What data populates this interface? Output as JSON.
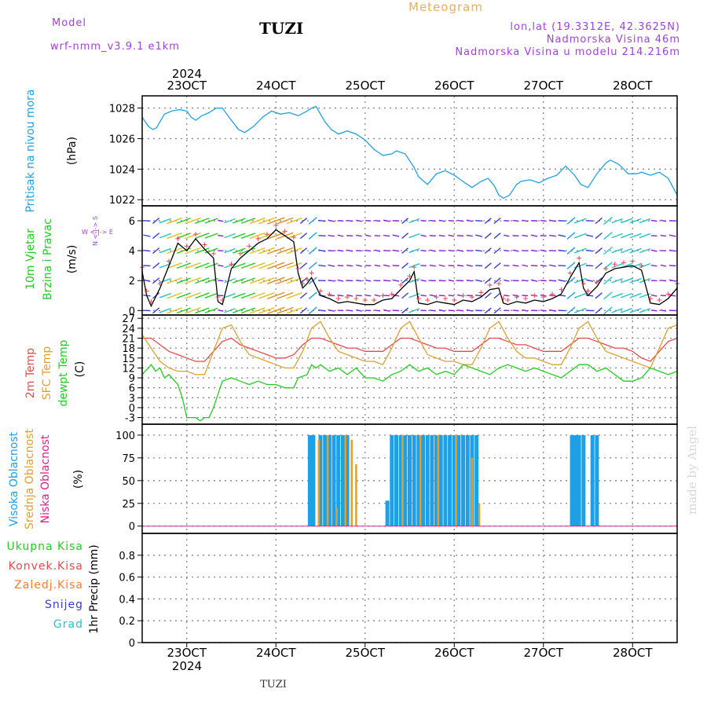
{
  "header": {
    "model_label": "Model",
    "model_name": "wrf-nmm_v3.9.1  e1km",
    "station": "TUZI",
    "product": "Meteogram",
    "coords": "lon,lat (19.3312E, 42.3625N)",
    "elevation": "Nadmorska Visina 46m",
    "model_elevation": "Nadmorska Visina u modelu 214.216m",
    "year_top": "2024",
    "year_bottom": "2024",
    "footer_station": "TUZI",
    "credit": "made by Angel"
  },
  "colors": {
    "pressure": "#1ea0e6",
    "temp2m": "#e84a4a",
    "sfc": "#e0a030",
    "dew": "#22cc22",
    "high_cloud": "#1ea0e6",
    "mid_cloud": "#e0a030",
    "low_cloud": "#e0208a",
    "total_precip": "#22cc22",
    "conv_precip": "#e84a4a",
    "frozen_precip": "#ff7a2a",
    "snow": "#3b3bdc",
    "hail": "#22c4c4",
    "header_purple": "#a040e0",
    "header_gold": "#e8b060"
  },
  "panel_labels": {
    "pressure": "Pritisak na nivou mora",
    "pressure_unit": "(hPa)",
    "wind1": "10m Vjetar",
    "wind2": "Brzina i Pravac",
    "wind_unit": "(m/s)",
    "compass": "W  <-|-> E",
    "compass_ns": "N <-|-> S",
    "temp1": "2m Temp",
    "temp2": "SFC Temp",
    "temp3": "dewpt Temp",
    "temp_unit": "(C)",
    "cloud1": "Visoka Oblacnost",
    "cloud2": "Srednja Oblacnost",
    "cloud3": "Niska Oblacnost",
    "cloud_unit": "(%)",
    "precip_unit": "1hr Precip (mm)"
  },
  "precip_legend": [
    "Ukupna Kisa",
    "Konvek.Kisa",
    "Zaledj.Kisa",
    "Snijeg",
    "Grad"
  ],
  "chart_data": {
    "type": "line",
    "x_labels": [
      "23OCT",
      "24OCT",
      "25OCT",
      "26OCT",
      "27OCT",
      "28OCT"
    ],
    "x_label_days": [
      23,
      24,
      25,
      26,
      27,
      28
    ],
    "x_range_days": [
      22.5,
      28.5
    ],
    "panels": [
      {
        "name": "pressure",
        "ylabel": "(hPa)",
        "ylim": [
          1021.6,
          1028.8
        ],
        "yticks": [
          1022,
          1024,
          1026,
          1028
        ],
        "series": [
          {
            "name": "Pritisak na nivou mora",
            "x": [
              22.5,
              22.57,
              22.62,
              22.66,
              22.71,
              22.75,
              22.83,
              22.92,
              23.0,
              23.05,
              23.1,
              23.17,
              23.25,
              23.33,
              23.4,
              23.5,
              23.58,
              23.65,
              23.75,
              23.85,
              23.95,
              24.05,
              24.15,
              24.25,
              24.35,
              24.4,
              24.45,
              24.5,
              24.55,
              24.62,
              24.7,
              24.8,
              24.9,
              25.0,
              25.05,
              25.1,
              25.2,
              25.3,
              25.35,
              25.45,
              25.55,
              25.6,
              25.7,
              25.8,
              25.9,
              26.0,
              26.05,
              26.12,
              26.2,
              26.3,
              26.38,
              26.45,
              26.5,
              26.55,
              26.62,
              26.7,
              26.75,
              26.85,
              26.95,
              27.05,
              27.15,
              27.25,
              27.35,
              27.42,
              27.5,
              27.6,
              27.7,
              27.75,
              27.85,
              27.95,
              28.05,
              28.1,
              28.2,
              28.3,
              28.4,
              28.5
            ],
            "y": [
              1027.4,
              1026.8,
              1026.6,
              1026.7,
              1027.2,
              1027.6,
              1027.8,
              1027.9,
              1027.8,
              1027.4,
              1027.2,
              1027.5,
              1027.7,
              1028.0,
              1028.0,
              1027.2,
              1026.6,
              1026.4,
              1026.8,
              1027.4,
              1027.8,
              1027.6,
              1027.7,
              1027.5,
              1027.8,
              1028.0,
              1028.1,
              1027.6,
              1027.1,
              1026.6,
              1026.3,
              1026.5,
              1026.3,
              1025.9,
              1025.6,
              1025.3,
              1024.9,
              1025.0,
              1025.2,
              1025.0,
              1024.1,
              1023.5,
              1023.0,
              1023.7,
              1023.9,
              1023.6,
              1023.4,
              1023.1,
              1022.8,
              1023.2,
              1023.4,
              1022.9,
              1022.3,
              1022.1,
              1022.3,
              1023.0,
              1023.2,
              1023.3,
              1023.1,
              1023.4,
              1023.6,
              1024.2,
              1023.6,
              1023.0,
              1022.8,
              1023.7,
              1024.4,
              1024.6,
              1024.3,
              1023.7,
              1023.7,
              1023.8,
              1023.6,
              1023.8,
              1023.4,
              1022.3
            ]
          }
        ]
      },
      {
        "name": "wind",
        "ylabel": "(m/s)",
        "ylim": [
          -0.3,
          7.0
        ],
        "yticks": [
          0,
          2,
          4,
          6
        ],
        "series": [
          {
            "name": "10m Vjetar brzina",
            "x": [
              22.5,
              22.55,
              22.6,
              22.7,
              22.8,
              22.9,
              23.0,
              23.1,
              23.2,
              23.3,
              23.35,
              23.4,
              23.5,
              23.6,
              23.7,
              23.8,
              23.9,
              24.0,
              24.1,
              24.2,
              24.25,
              24.3,
              24.35,
              24.4,
              24.5,
              24.6,
              24.7,
              24.8,
              24.9,
              25.0,
              25.1,
              25.2,
              25.3,
              25.4,
              25.5,
              25.55,
              25.6,
              25.7,
              25.8,
              25.9,
              26.0,
              26.1,
              26.2,
              26.3,
              26.4,
              26.5,
              26.55,
              26.6,
              26.7,
              26.8,
              26.9,
              27.0,
              27.1,
              27.2,
              27.3,
              27.4,
              27.45,
              27.5,
              27.6,
              27.7,
              27.8,
              27.9,
              28.0,
              28.1,
              28.2,
              28.3,
              28.4,
              28.5
            ],
            "y": [
              2.6,
              1.0,
              0.3,
              1.5,
              3.0,
              4.5,
              4.0,
              4.8,
              4.1,
              3.5,
              0.6,
              0.4,
              2.8,
              3.5,
              4.0,
              4.5,
              4.8,
              5.4,
              5.0,
              4.6,
              2.5,
              1.5,
              1.8,
              2.2,
              1.0,
              0.8,
              0.5,
              0.6,
              0.5,
              0.4,
              0.4,
              0.7,
              0.8,
              1.4,
              2.0,
              2.6,
              0.5,
              0.4,
              0.6,
              0.5,
              0.4,
              0.7,
              0.6,
              0.9,
              1.4,
              1.5,
              0.5,
              0.4,
              0.6,
              0.5,
              0.7,
              0.6,
              0.8,
              1.1,
              2.2,
              3.2,
              1.5,
              1.0,
              1.6,
              2.5,
              2.8,
              2.9,
              3.0,
              2.7,
              0.5,
              0.4,
              0.8,
              1.5
            ]
          }
        ]
      },
      {
        "name": "temperature",
        "ylabel": "(C)",
        "ylim": [
          -5,
          28
        ],
        "yticks": [
          -3,
          0,
          3,
          6,
          9,
          12,
          15,
          18,
          21,
          24,
          27
        ],
        "series": [
          {
            "name": "2m Temp",
            "x": [
              22.5,
              22.6,
              22.7,
              22.8,
              22.9,
              23.0,
              23.1,
              23.2,
              23.3,
              23.4,
              23.5,
              23.6,
              23.7,
              23.8,
              23.9,
              24.0,
              24.1,
              24.2,
              24.3,
              24.4,
              24.5,
              24.6,
              24.7,
              24.8,
              24.9,
              25.0,
              25.1,
              25.2,
              25.3,
              25.4,
              25.5,
              25.6,
              25.7,
              25.8,
              25.9,
              26.0,
              26.1,
              26.2,
              26.3,
              26.4,
              26.5,
              26.6,
              26.7,
              26.8,
              26.9,
              27.0,
              27.1,
              27.2,
              27.3,
              27.4,
              27.5,
              27.6,
              27.7,
              27.8,
              27.9,
              28.0,
              28.1,
              28.2,
              28.3,
              28.4,
              28.5
            ],
            "y": [
              21,
              21,
              19,
              17,
              16,
              15,
              14,
              14,
              17,
              20,
              21,
              19,
              18,
              17,
              16,
              15,
              15,
              16,
              19,
              21,
              21,
              20,
              19,
              18,
              18,
              17,
              17,
              17,
              19,
              21,
              21,
              20,
              19,
              18,
              18,
              17,
              17,
              17,
              19,
              21,
              21,
              20,
              19,
              19,
              18,
              17,
              17,
              17,
              19,
              21,
              21,
              20,
              19,
              18,
              18,
              17,
              15,
              14,
              17,
              20,
              21
            ]
          },
          {
            "name": "SFC Temp",
            "x": [
              22.5,
              22.6,
              22.7,
              22.8,
              22.9,
              23.0,
              23.1,
              23.2,
              23.3,
              23.4,
              23.5,
              23.6,
              23.7,
              23.8,
              23.9,
              24.0,
              24.1,
              24.2,
              24.3,
              24.4,
              24.5,
              24.6,
              24.7,
              24.8,
              24.9,
              25.0,
              25.1,
              25.2,
              25.3,
              25.4,
              25.5,
              25.6,
              25.7,
              25.8,
              25.9,
              26.0,
              26.1,
              26.2,
              26.3,
              26.4,
              26.5,
              26.6,
              26.7,
              26.8,
              26.9,
              27.0,
              27.1,
              27.2,
              27.3,
              27.4,
              27.5,
              27.6,
              27.7,
              27.8,
              27.9,
              28.0,
              28.1,
              28.2,
              28.3,
              28.4,
              28.5
            ],
            "y": [
              22,
              18,
              14,
              12,
              11,
              11,
              10,
              10,
              17,
              24,
              25,
              20,
              16,
              15,
              14,
              13,
              12,
              12,
              17,
              24,
              26,
              21,
              17,
              16,
              15,
              14,
              14,
              13,
              18,
              24,
              26,
              21,
              16,
              15,
              14,
              14,
              13,
              13,
              18,
              24,
              26,
              21,
              17,
              15,
              15,
              14,
              13,
              13,
              18,
              24,
              26,
              21,
              17,
              16,
              15,
              14,
              13,
              12,
              18,
              24,
              25
            ]
          },
          {
            "name": "dewpt Temp",
            "x": [
              22.5,
              22.6,
              22.65,
              22.7,
              22.75,
              22.8,
              22.9,
              22.95,
              23.0,
              23.1,
              23.15,
              23.2,
              23.25,
              23.3,
              23.4,
              23.5,
              23.6,
              23.7,
              23.8,
              23.9,
              24.0,
              24.1,
              24.2,
              24.25,
              24.35,
              24.4,
              24.45,
              24.5,
              24.6,
              24.7,
              24.8,
              24.9,
              25.0,
              25.1,
              25.2,
              25.3,
              25.4,
              25.5,
              25.6,
              25.7,
              25.8,
              25.9,
              26.0,
              26.1,
              26.2,
              26.3,
              26.4,
              26.5,
              26.6,
              26.7,
              26.8,
              26.9,
              27.0,
              27.1,
              27.2,
              27.3,
              27.4,
              27.5,
              27.6,
              27.7,
              27.8,
              27.9,
              28.0,
              28.1,
              28.2,
              28.3,
              28.4,
              28.5
            ],
            "y": [
              10,
              13,
              11,
              12,
              9,
              10,
              7,
              3,
              -3,
              -3,
              -4,
              -3,
              -3,
              0,
              8,
              9,
              8,
              7,
              8,
              7,
              7,
              6,
              6,
              9,
              10,
              13,
              12,
              13,
              11,
              12,
              10,
              12,
              9,
              9,
              8,
              10,
              11,
              13,
              11,
              12,
              10,
              11,
              10,
              13,
              12,
              11,
              10,
              12,
              13,
              12,
              11,
              12,
              11,
              10,
              9,
              11,
              13,
              13,
              11,
              12,
              10,
              8,
              8,
              9,
              12,
              11,
              10,
              11
            ]
          }
        ]
      },
      {
        "name": "cloud",
        "ylabel": "(%)",
        "ylim": [
          -8,
          112
        ],
        "yticks": [
          0,
          25,
          50,
          75,
          100
        ],
        "series": [
          {
            "name": "Visoka Oblacnost",
            "type": "bar",
            "x": [
              24.38,
              24.42,
              24.5,
              24.55,
              24.6,
              24.65,
              24.7,
              24.75,
              24.8,
              25.25,
              25.3,
              25.35,
              25.4,
              25.45,
              25.5,
              25.55,
              25.6,
              25.65,
              25.7,
              25.75,
              25.8,
              25.85,
              25.9,
              25.95,
              26.0,
              26.05,
              26.1,
              26.15,
              26.2,
              26.25,
              27.32,
              27.36,
              27.4,
              27.45,
              27.55,
              27.6
            ],
            "y": [
              100,
              100,
              100,
              100,
              100,
              100,
              100,
              100,
              100,
              28,
              100,
              100,
              100,
              100,
              100,
              100,
              100,
              100,
              100,
              100,
              100,
              100,
              100,
              100,
              100,
              100,
              100,
              100,
              100,
              100,
              100,
              100,
              100,
              100,
              100,
              100
            ]
          },
          {
            "name": "Srednja Oblacnost",
            "type": "bar",
            "x": [
              24.48,
              24.58,
              24.68,
              24.78,
              24.85,
              24.9,
              25.42,
              25.62,
              25.82,
              26.02,
              26.2,
              26.28
            ],
            "y": [
              95,
              100,
              20,
              100,
              95,
              68,
              100,
              100,
              100,
              100,
              75,
              25
            ]
          },
          {
            "name": "Niska Oblacnost",
            "type": "line",
            "x": [
              22.5,
              28.5
            ],
            "y": [
              0,
              0
            ]
          }
        ]
      },
      {
        "name": "precip",
        "ylabel": "1hr Precip (mm)",
        "ylim": [
          0,
          1.0
        ],
        "yticks": [
          0,
          0.2,
          0.4,
          0.6,
          0.8
        ],
        "series": [
          {
            "name": "Ukupna Kisa",
            "x": [
              22.5,
              28.5
            ],
            "y": [
              0,
              0
            ]
          }
        ]
      }
    ]
  }
}
